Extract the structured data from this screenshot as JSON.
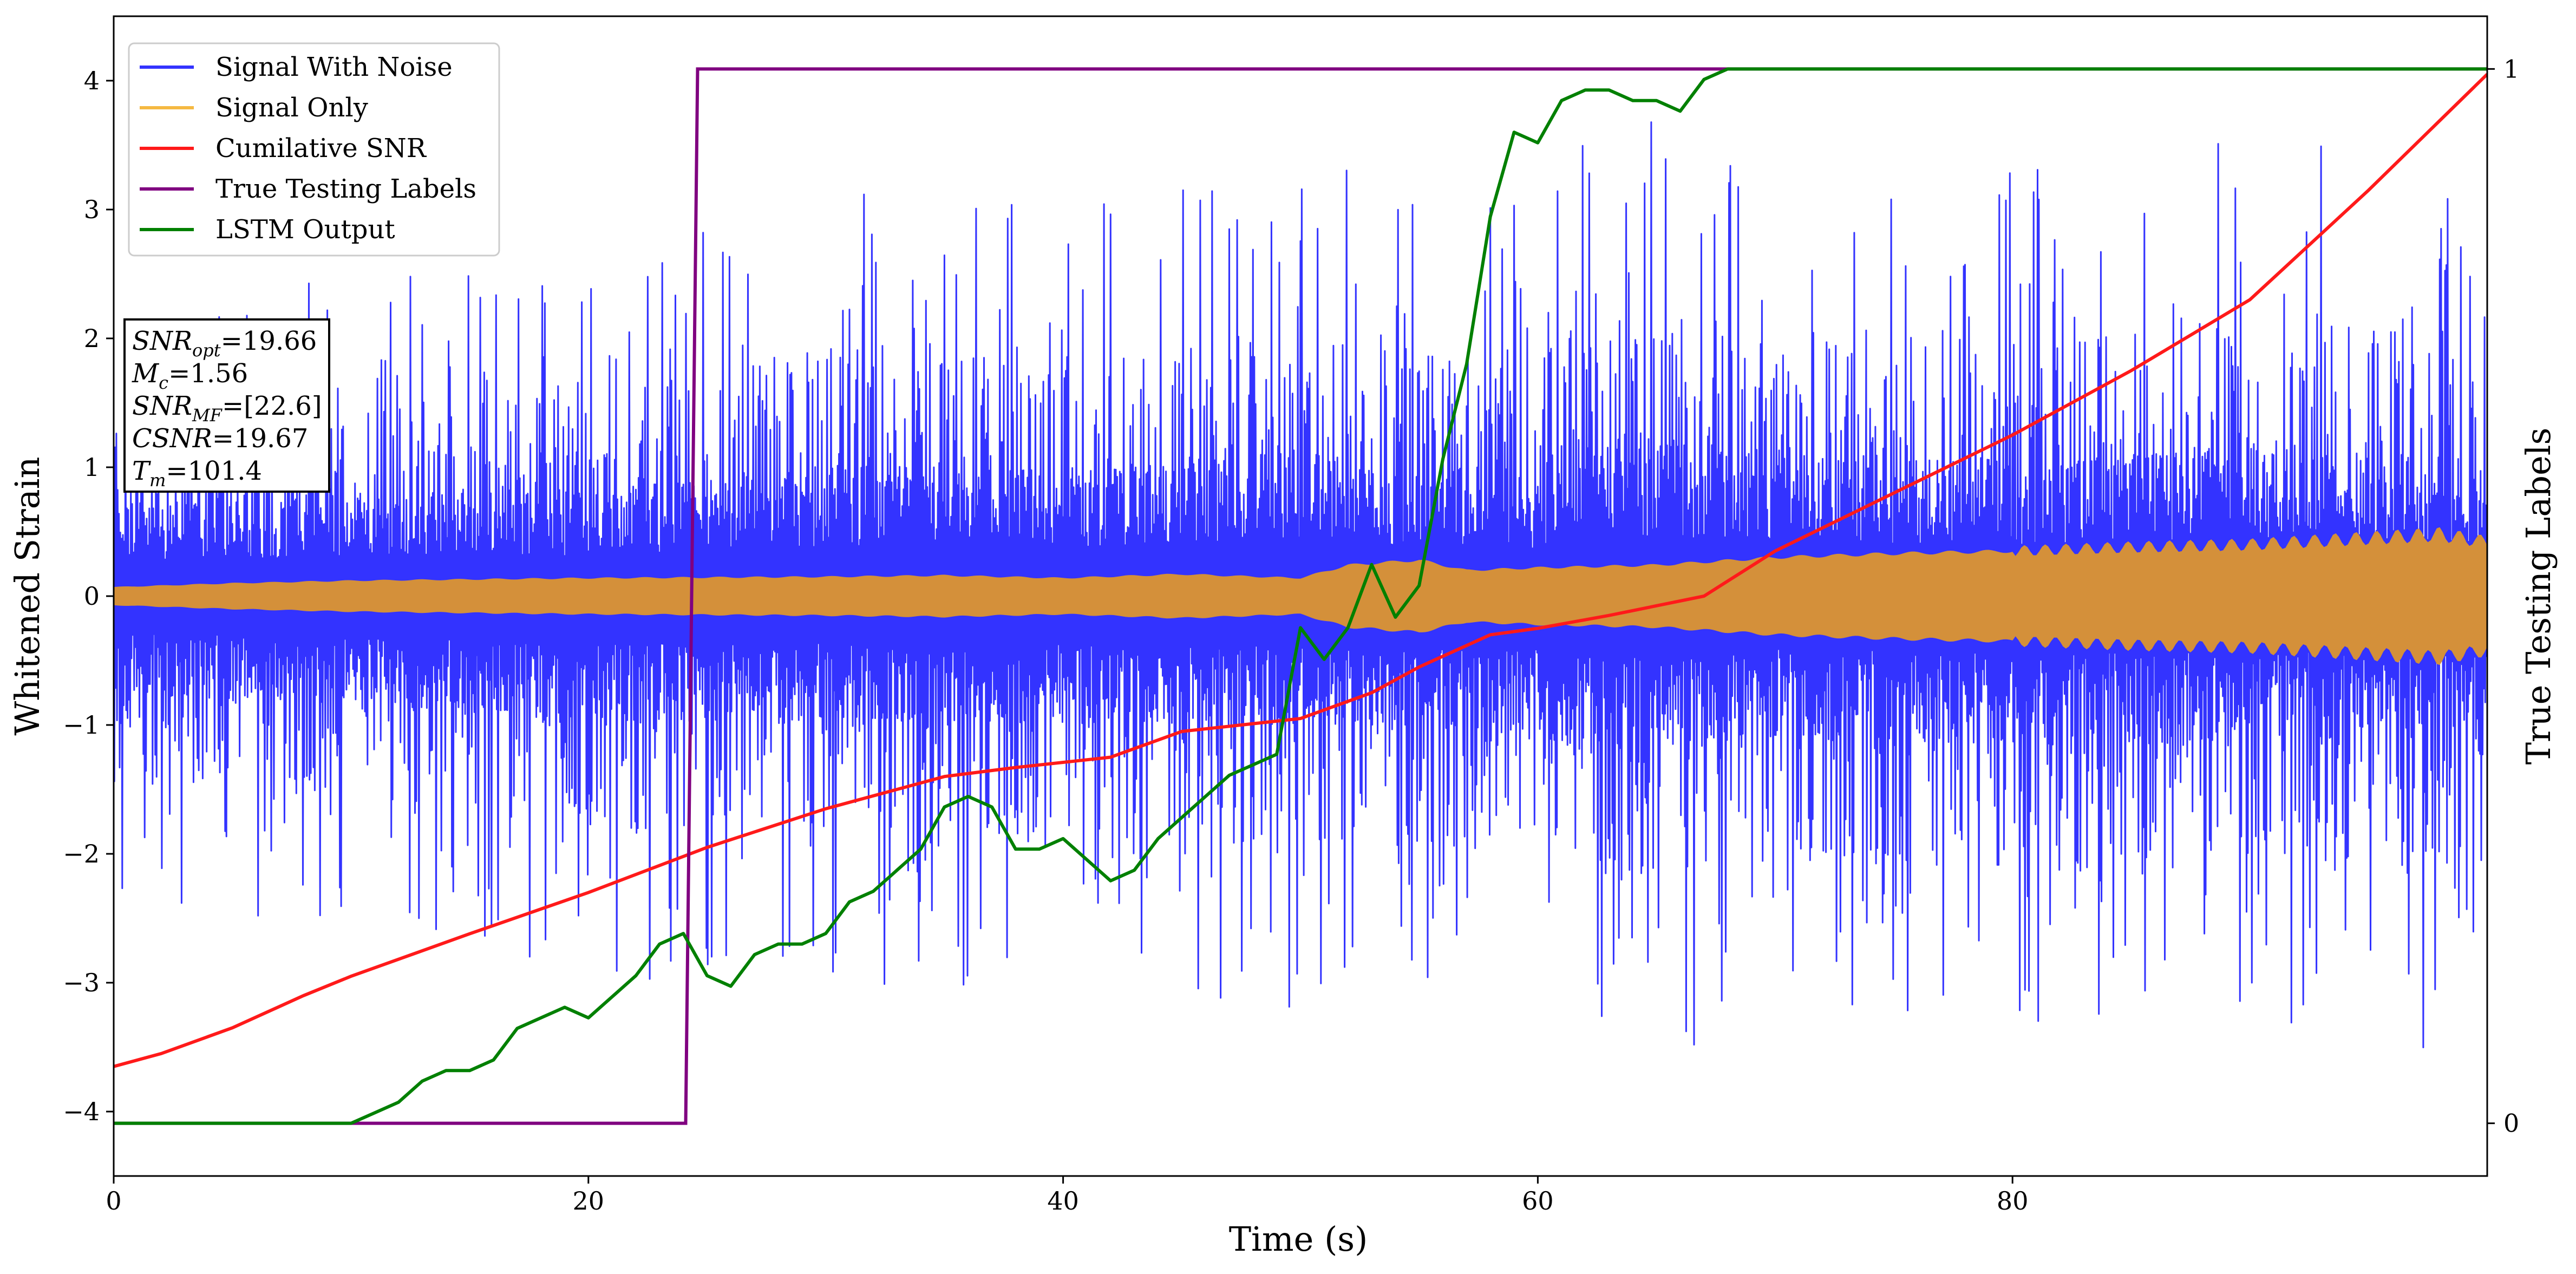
{
  "chart_data": {
    "type": "line",
    "xlabel": "Time (s)",
    "ylabel_left": "Whitened Strain",
    "ylabel_right": "True Testing Labels",
    "xlim": [
      0,
      100
    ],
    "ylim_left": [
      -4.5,
      4.5
    ],
    "ylim_right": [
      -0.05,
      1.05
    ],
    "x_ticks": [
      0,
      20,
      40,
      60,
      80
    ],
    "y_ticks_left": [
      -4,
      -3,
      -2,
      -1,
      0,
      1,
      2,
      3,
      4
    ],
    "y_ticks_right": [
      0,
      1
    ],
    "grid": false,
    "legend_position": "top-left",
    "colors": {
      "signal_with_noise": "#3333ff",
      "signal_only": "#f5b942",
      "signal_only_visible": "#d4903a",
      "cumulative_snr": "#ff1a1a",
      "true_labels": "#800080",
      "lstm_output": "#008000"
    },
    "legend": [
      {
        "label": "Signal With Noise",
        "color": "#3333ff"
      },
      {
        "label": "Signal Only",
        "color": "#f5b942"
      },
      {
        "label": "Cumilative SNR",
        "color": "#ff1a1a"
      },
      {
        "label": "True Testing Labels",
        "color": "#800080"
      },
      {
        "label": "LSTM Output",
        "color": "#008000"
      }
    ],
    "info_box": [
      {
        "main": "SNR",
        "sub": "opt",
        "value": "=19.66"
      },
      {
        "main": "M",
        "sub": "c",
        "value": "=1.56"
      },
      {
        "main": "SNR",
        "sub": "MF",
        "value": "=[22.6]"
      },
      {
        "main": "CSNR",
        "sub": "",
        "value": "=19.67"
      },
      {
        "main": "T",
        "sub": "m",
        "value": "=101.4"
      }
    ],
    "series": [
      {
        "name": "Signal With Noise",
        "axis": "left",
        "style": "noise-band",
        "x": [
          0,
          10,
          20,
          30,
          40,
          50,
          60,
          61,
          70,
          80,
          90,
          100
        ],
        "upper": [
          2.3,
          2.5,
          2.6,
          3.2,
          3.1,
          3.5,
          3.0,
          4.1,
          3.5,
          3.3,
          3.6,
          3.4
        ],
        "lower": [
          -2.4,
          -2.6,
          -3.1,
          -3.0,
          -3.1,
          -3.2,
          -3.3,
          -3.8,
          -3.4,
          -3.6,
          -3.6,
          -3.5
        ]
      },
      {
        "name": "Signal Only",
        "axis": "left",
        "style": "envelope",
        "x": [
          0,
          5,
          10,
          20,
          30,
          35,
          40,
          45,
          50,
          52,
          55,
          57,
          60,
          65,
          70,
          75,
          80,
          85,
          90,
          95,
          98,
          100
        ],
        "amplitude": [
          0.07,
          0.1,
          0.12,
          0.14,
          0.15,
          0.16,
          0.14,
          0.17,
          0.14,
          0.24,
          0.28,
          0.2,
          0.22,
          0.24,
          0.3,
          0.33,
          0.35,
          0.38,
          0.4,
          0.45,
          0.48,
          0.42
        ]
      },
      {
        "name": "Cumilative SNR",
        "axis": "left",
        "x": [
          0,
          2,
          5,
          8,
          10,
          15,
          20,
          25,
          30,
          35,
          38,
          42,
          45,
          50,
          53,
          55,
          58,
          60,
          63,
          67,
          70,
          75,
          80,
          85,
          90,
          95,
          100
        ],
        "y": [
          -3.65,
          -3.55,
          -3.35,
          -3.1,
          -2.95,
          -2.62,
          -2.3,
          -1.95,
          -1.65,
          -1.4,
          -1.33,
          -1.25,
          -1.05,
          -0.95,
          -0.75,
          -0.55,
          -0.3,
          -0.25,
          -0.15,
          0.0,
          0.35,
          0.8,
          1.25,
          1.75,
          2.3,
          3.15,
          4.05
        ]
      },
      {
        "name": "True Testing Labels",
        "axis": "right",
        "x": [
          0,
          24.1,
          24.6,
          100
        ],
        "y": [
          0,
          0,
          1,
          1
        ]
      },
      {
        "name": "LSTM Output",
        "axis": "right",
        "x": [
          0,
          10,
          11,
          12,
          13,
          14,
          15,
          16,
          17,
          18,
          19,
          20,
          21,
          22,
          23,
          24,
          25,
          26,
          27,
          28,
          29,
          30,
          31,
          32,
          33,
          34,
          35,
          36,
          37,
          38,
          39,
          40,
          41,
          42,
          43,
          44,
          45,
          46,
          47,
          48,
          49,
          50,
          51,
          52,
          53,
          54,
          55,
          56,
          57,
          58,
          59,
          60,
          61,
          62,
          63,
          64,
          65,
          66,
          67,
          68,
          69,
          70,
          100
        ],
        "y": [
          0,
          0,
          0.01,
          0.02,
          0.04,
          0.05,
          0.05,
          0.06,
          0.09,
          0.1,
          0.11,
          0.1,
          0.12,
          0.14,
          0.17,
          0.18,
          0.14,
          0.13,
          0.16,
          0.17,
          0.17,
          0.18,
          0.21,
          0.22,
          0.24,
          0.26,
          0.3,
          0.31,
          0.3,
          0.26,
          0.26,
          0.27,
          0.25,
          0.23,
          0.24,
          0.27,
          0.29,
          0.31,
          0.33,
          0.34,
          0.35,
          0.47,
          0.44,
          0.47,
          0.53,
          0.48,
          0.51,
          0.63,
          0.72,
          0.86,
          0.94,
          0.93,
          0.97,
          0.98,
          0.98,
          0.97,
          0.97,
          0.96,
          0.99,
          1.0,
          1.0,
          1.0,
          1.0
        ]
      }
    ]
  }
}
